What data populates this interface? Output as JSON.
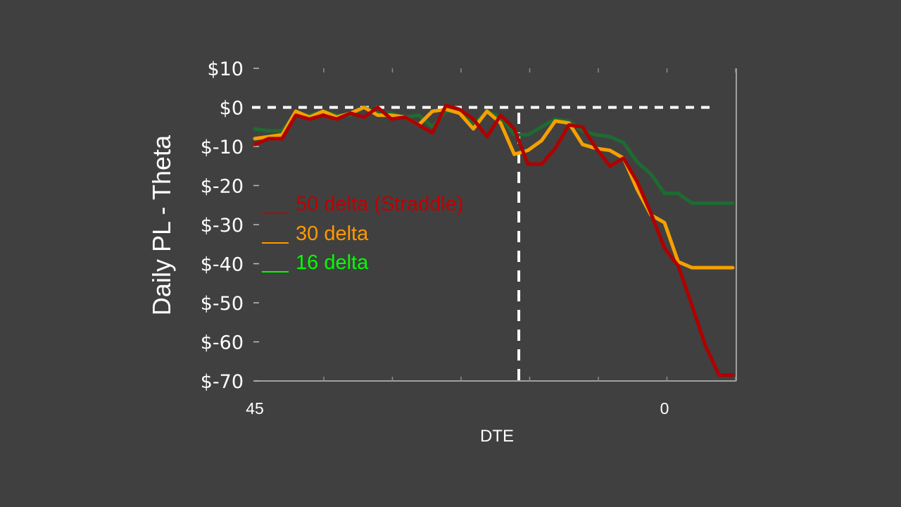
{
  "chart_data": {
    "type": "line",
    "ylabel": "Daily PL - Theta",
    "xlabel": "DTE",
    "x_tick_labels": [
      {
        "x": 45,
        "label": "45"
      },
      {
        "x": 0,
        "label": "0"
      }
    ],
    "y_tick_labels": [
      "$10",
      "$0",
      "$-10",
      "$-20",
      "$-30",
      "$-40",
      "$-50",
      "$-60",
      "$-70"
    ],
    "y_ticks": [
      10,
      0,
      -10,
      -20,
      -30,
      -40,
      -50,
      -60,
      -70
    ],
    "xlim": [
      45,
      -7.5
    ],
    "ylim": [
      -70,
      10
    ],
    "zero_line": 0,
    "vertical_marker_x": 16,
    "legend_position": "left",
    "series": [
      {
        "name": "50 delta (Straddle)",
        "color": "#c00000",
        "line_color": "#b00000",
        "x": [
          45,
          43.5,
          42,
          40.5,
          39,
          37.5,
          36,
          34.5,
          33,
          31.5,
          30,
          28.5,
          27,
          25.5,
          24,
          22.5,
          21,
          19.5,
          18,
          16.5,
          15,
          13.5,
          12,
          10.5,
          9,
          7.5,
          6,
          4.5,
          3,
          1.5,
          0,
          -1.5,
          -3,
          -4.5,
          -6,
          -7.5
        ],
        "values": [
          -9.5,
          -8,
          -8,
          -2,
          -3,
          -2,
          -3,
          -1.5,
          -2.5,
          0,
          -3,
          -2.5,
          -4.5,
          -6.5,
          0.5,
          -0.5,
          -3,
          -7.5,
          -2,
          -5.5,
          -14.5,
          -14.5,
          -10.5,
          -4.5,
          -5,
          -10.5,
          -15,
          -13,
          -19,
          -27,
          -36,
          -40.5,
          -50.5,
          -61,
          -68.5,
          -68.5
        ]
      },
      {
        "name": "30 delta",
        "color": "#ff9900",
        "line_color": "#f5a000",
        "x": [
          45,
          43.5,
          42,
          40.5,
          39,
          37.5,
          36,
          34.5,
          33,
          31.5,
          30,
          28.5,
          27,
          25.5,
          24,
          22.5,
          21,
          19.5,
          18,
          16.5,
          15,
          13.5,
          12,
          10.5,
          9,
          7.5,
          6,
          4.5,
          3,
          1.5,
          0,
          -1.5,
          -3,
          -4.5,
          -6,
          -7.5
        ],
        "values": [
          -8,
          -7.5,
          -7,
          -1,
          -2.5,
          -1,
          -2.5,
          -1.5,
          0,
          -2,
          -2,
          -2.5,
          -4.5,
          -1,
          -0.5,
          -1.5,
          -5.5,
          -1,
          -4,
          -12,
          -11,
          -8.5,
          -3.5,
          -4,
          -9.5,
          -10.5,
          -11,
          -13,
          -21,
          -27.5,
          -29.5,
          -39.5,
          -41,
          -41,
          -41,
          -41
        ]
      },
      {
        "name": "16 delta",
        "color": "#00ff00",
        "line_color": "#1e6b32",
        "x": [
          45,
          43.5,
          42,
          40.5,
          39,
          37.5,
          36,
          34.5,
          33,
          31.5,
          30,
          28.5,
          27,
          25.5,
          24,
          22.5,
          21,
          19.5,
          18,
          16.5,
          15,
          13.5,
          12,
          10.5,
          9,
          7.5,
          6,
          4.5,
          3,
          1.5,
          0,
          -1.5,
          -3,
          -4.5,
          -6,
          -7.5
        ],
        "values": [
          -5.5,
          -6,
          -6,
          -1.5,
          -2,
          -1,
          -2,
          -2,
          0,
          -1.5,
          -1.5,
          -2.5,
          -2,
          -5,
          -1,
          -1,
          -4.5,
          -1,
          -2.5,
          -7,
          -7,
          -5,
          -3,
          -3.5,
          -6,
          -7,
          -7.5,
          -9,
          -14,
          -17,
          -22,
          -22,
          -24.5,
          -24.5,
          -24.5,
          -24.5
        ]
      }
    ]
  }
}
